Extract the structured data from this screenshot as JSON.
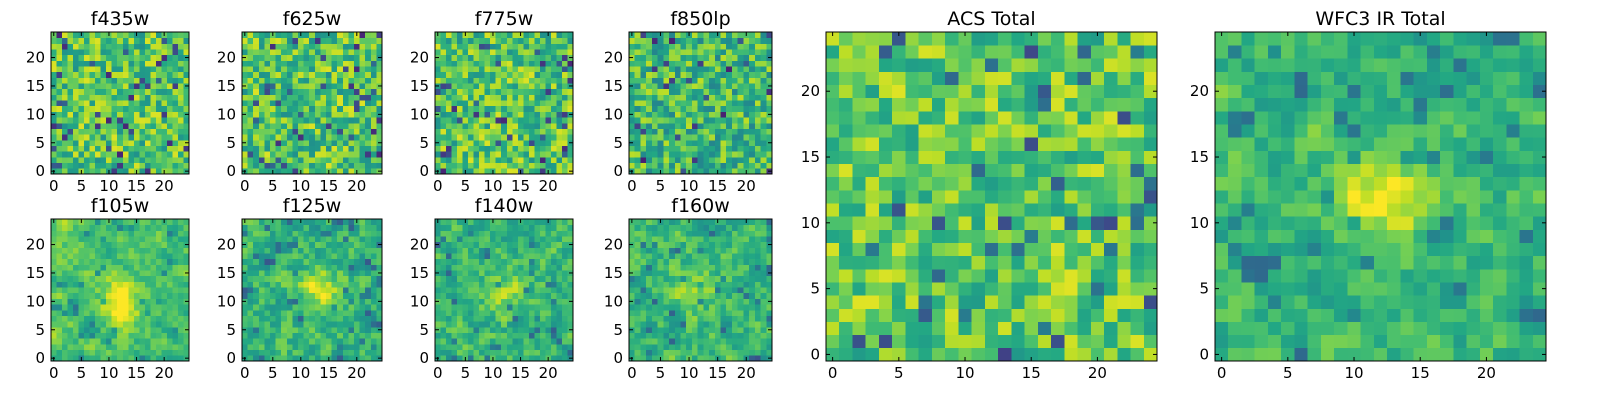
{
  "chart_data": {
    "type": "heatmap",
    "colormap": "viridis",
    "grid": false,
    "panels": [
      {
        "title": "f435w",
        "xlim": [
          -0.5,
          24.5
        ],
        "ylim": [
          -0.5,
          24.5
        ],
        "xticks": [
          0,
          5,
          10,
          15,
          20
        ],
        "yticks": [
          0,
          5,
          10,
          15,
          20
        ],
        "seed": 11,
        "smooth": 0,
        "bias": 0.05,
        "blob": null
      },
      {
        "title": "f625w",
        "xlim": [
          -0.5,
          24.5
        ],
        "ylim": [
          -0.5,
          24.5
        ],
        "xticks": [
          0,
          5,
          10,
          15,
          20
        ],
        "yticks": [
          0,
          5,
          10,
          15,
          20
        ],
        "seed": 23,
        "smooth": 0,
        "bias": 0.05,
        "blob": null
      },
      {
        "title": "f775w",
        "xlim": [
          -0.5,
          24.5
        ],
        "ylim": [
          -0.5,
          24.5
        ],
        "xticks": [
          0,
          5,
          10,
          15,
          20
        ],
        "yticks": [
          0,
          5,
          10,
          15,
          20
        ],
        "seed": 37,
        "smooth": 0,
        "bias": 0.05,
        "blob": null
      },
      {
        "title": "f850lp",
        "xlim": [
          -0.5,
          24.5
        ],
        "ylim": [
          -0.5,
          24.5
        ],
        "xticks": [
          0,
          5,
          10,
          15,
          20
        ],
        "yticks": [
          0,
          5,
          10,
          15,
          20
        ],
        "seed": 41,
        "smooth": 0,
        "bias": 0.0,
        "blob": null
      },
      {
        "title": "f105w",
        "xlim": [
          -0.5,
          24.5
        ],
        "ylim": [
          -0.5,
          24.5
        ],
        "xticks": [
          0,
          5,
          10,
          15,
          20
        ],
        "yticks": [
          0,
          5,
          10,
          15,
          20
        ],
        "seed": 53,
        "smooth": 0.6,
        "bias": 0.05,
        "blob": [
          12,
          10,
          0.35
        ]
      },
      {
        "title": "f125w",
        "xlim": [
          -0.5,
          24.5
        ],
        "ylim": [
          -0.5,
          24.5
        ],
        "xticks": [
          0,
          5,
          10,
          15,
          20
        ],
        "yticks": [
          0,
          5,
          10,
          15,
          20
        ],
        "seed": 67,
        "smooth": 0.5,
        "bias": 0.0,
        "blob": [
          13,
          12,
          0.25
        ]
      },
      {
        "title": "f140w",
        "xlim": [
          -0.5,
          24.5
        ],
        "ylim": [
          -0.5,
          24.5
        ],
        "xticks": [
          0,
          5,
          10,
          15,
          20
        ],
        "yticks": [
          0,
          5,
          10,
          15,
          20
        ],
        "seed": 79,
        "smooth": 0.5,
        "bias": 0.0,
        "blob": [
          12,
          12,
          0.15
        ]
      },
      {
        "title": "f160w",
        "xlim": [
          -0.5,
          24.5
        ],
        "ylim": [
          -0.5,
          24.5
        ],
        "xticks": [
          0,
          5,
          10,
          15,
          20
        ],
        "yticks": [
          0,
          5,
          10,
          15,
          20
        ],
        "seed": 83,
        "smooth": 0.5,
        "bias": 0.0,
        "blob": [
          11,
          12,
          0.2
        ]
      },
      {
        "title": "ACS Total",
        "xlim": [
          -0.5,
          24.5
        ],
        "ylim": [
          -0.5,
          24.5
        ],
        "xticks": [
          0,
          5,
          10,
          15,
          20
        ],
        "yticks": [
          0,
          5,
          10,
          15,
          20
        ],
        "seed": 97,
        "smooth": 0.15,
        "bias": 0.08,
        "blob": null
      },
      {
        "title": "WFC3 IR Total",
        "xlim": [
          -0.5,
          24.5
        ],
        "ylim": [
          -0.5,
          24.5
        ],
        "xticks": [
          0,
          5,
          10,
          15,
          20
        ],
        "yticks": [
          0,
          5,
          10,
          15,
          20
        ],
        "seed": 101,
        "smooth": 0.55,
        "bias": 0.0,
        "blob": [
          12,
          12,
          0.35
        ]
      }
    ]
  }
}
